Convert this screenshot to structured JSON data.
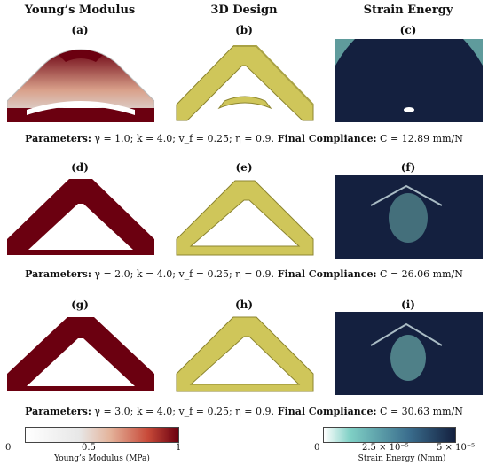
{
  "column_headers": [
    "Young’s Modulus",
    "3D Design",
    "Strain Energy"
  ],
  "panel_labels": [
    "(a)",
    "(b)",
    "(c)",
    "(d)",
    "(e)",
    "(f)",
    "(g)",
    "(h)",
    "(i)"
  ],
  "captions": [
    {
      "params_label": "Parameters:",
      "params": " γ = 1.0; k = 4.0; v_f = 0.25; η = 0.9.",
      "compliance_label": " Final Compliance:",
      "compliance": " C = 12.89 mm/N"
    },
    {
      "params_label": "Parameters:",
      "params": " γ = 2.0; k = 4.0; v_f = 0.25; η = 0.9.",
      "compliance_label": " Final Compliance:",
      "compliance": " C = 26.06 mm/N"
    },
    {
      "params_label": "Parameters:",
      "params": " γ = 3.0; k = 4.0; v_f = 0.25; η = 0.9.",
      "compliance_label": " Final Compliance:",
      "compliance": " C = 30.63 mm/N"
    }
  ],
  "colorbars": {
    "modulus": {
      "ticks": [
        "0",
        "0.5",
        "1"
      ],
      "title": "Young’s Modulus (MPa)"
    },
    "strain": {
      "ticks": [
        "0",
        "2.5 × 10⁻⁵",
        "5 × 10⁻⁵"
      ],
      "title": "Strain Energy (Nmm)"
    }
  },
  "colors": {
    "dark_red": "#6b0010",
    "olive": "#cfc65a",
    "navy": "#14203f",
    "teal": "#7fd0c5"
  }
}
